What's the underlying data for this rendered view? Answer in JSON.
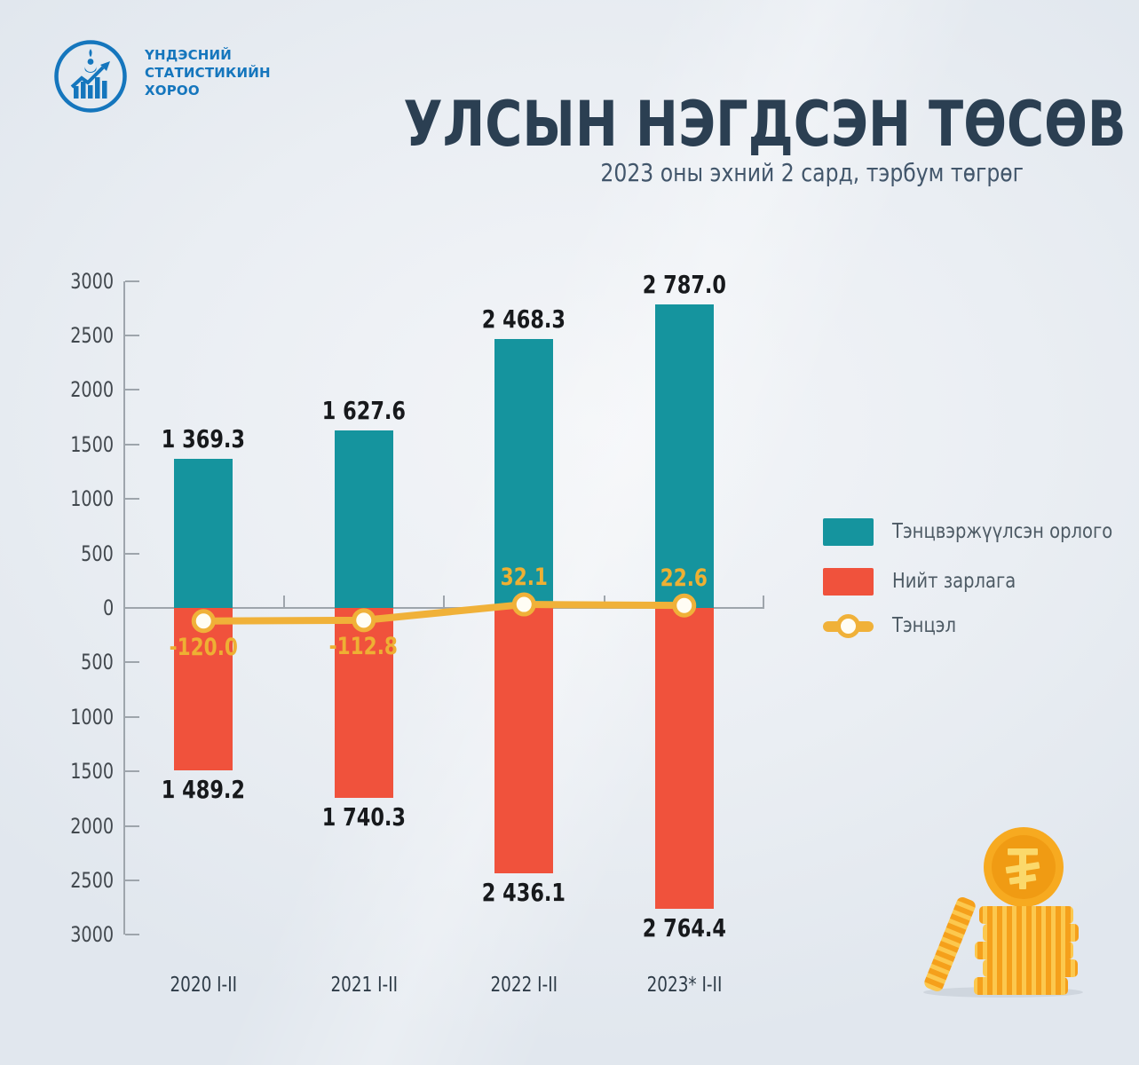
{
  "logo": {
    "org_lines": [
      "ҮНДЭСНИЙ",
      "СТАТИСТИКИЙН",
      "ХОРОО"
    ],
    "color": "#1576bd"
  },
  "header": {
    "title": "УЛСЫН НЭГДСЭН ТӨСӨВ",
    "subtitle": "2023 оны эхний 2 сард, тэрбум төгрөг"
  },
  "chart_data": {
    "type": "bar",
    "variant": "diverging-bars-with-balance-line",
    "unit": "тэрбум төгрөг",
    "categories": [
      "2020 I-II",
      "2021 I-II",
      "2022 I-II",
      "2023* I-II"
    ],
    "series": [
      {
        "name": "Тэнцвэржүүлсэн орлого",
        "type": "bar",
        "direction": "up",
        "color": "#15949e",
        "values": [
          1369.3,
          1627.6,
          2468.3,
          2787.0
        ],
        "value_labels": [
          "1 369.3",
          "1 627.6",
          "2 468.3",
          "2 787.0"
        ]
      },
      {
        "name": "Нийт зарлага",
        "type": "bar",
        "direction": "down",
        "color": "#f0523c",
        "values": [
          1489.2,
          1740.3,
          2436.1,
          2764.4
        ],
        "value_labels": [
          "1 489.2",
          "1 740.3",
          "2 436.1",
          "2 764.4"
        ]
      },
      {
        "name": "Тэнцэл",
        "type": "line",
        "color": "#f0b139",
        "values": [
          -120.0,
          -112.8,
          32.1,
          22.6
        ],
        "value_labels": [
          "-120.0",
          "-112.8",
          "32.1",
          "22.6"
        ]
      }
    ],
    "y_axis": {
      "max": 3000,
      "min": -3000,
      "step": 500,
      "labels_absolute": true,
      "tick_labels": [
        "3000",
        "2500",
        "2000",
        "1500",
        "1000",
        "500",
        "0",
        "500",
        "1000",
        "1500",
        "2000",
        "2500",
        "3000"
      ]
    },
    "legend": {
      "position": "right",
      "items": [
        "Тэнцвэржүүлсэн орлого",
        "Нийт зарлага",
        "Тэнцэл"
      ]
    },
    "grid": false
  },
  "decor": {
    "coin_illustration": "coin-stack-with-tugrik-coin",
    "currency_symbol": "₮",
    "coin_colors": {
      "outer": "#f7aa20",
      "inner": "#f09b13",
      "stripe_dark": "#f5a01b",
      "stripe_light": "#fcc84e",
      "symbol": "#fbd96b",
      "shadow": "#c7ced7"
    }
  },
  "colors": {
    "background": "#eaeef3",
    "axis": "#9ea5ac",
    "tick_text": "#42484e",
    "value_text": "#17191c",
    "balance_text": "#eeb033",
    "title_text": "#2b3f52"
  }
}
